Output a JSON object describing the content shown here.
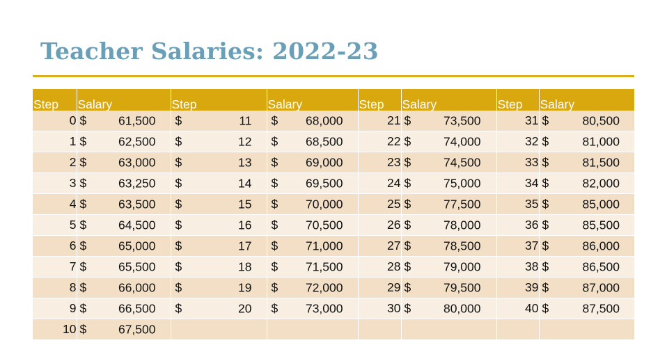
{
  "title": "Teacher Salaries: 2022-23",
  "headers": [
    "Step",
    "Salary",
    "Step",
    "Salary",
    "Step",
    "Salary",
    "Step",
    "Salary"
  ],
  "currency": "$",
  "rows": [
    {
      "s1": "0",
      "v1": "61,500",
      "s2": "11",
      "v2": "68,000",
      "s3": "21",
      "v3": "73,500",
      "s4": "31",
      "v4": "80,500"
    },
    {
      "s1": "1",
      "v1": "62,500",
      "s2": "12",
      "v2": "68,500",
      "s3": "22",
      "v3": "74,000",
      "s4": "32",
      "v4": "81,000"
    },
    {
      "s1": "2",
      "v1": "63,000",
      "s2": "13",
      "v2": "69,000",
      "s3": "23",
      "v3": "74,500",
      "s4": "33",
      "v4": "81,500"
    },
    {
      "s1": "3",
      "v1": "63,250",
      "s2": "14",
      "v2": "69,500",
      "s3": "24",
      "v3": "75,000",
      "s4": "34",
      "v4": "82,000"
    },
    {
      "s1": "4",
      "v1": "63,500",
      "s2": "15",
      "v2": "70,000",
      "s3": "25",
      "v3": "77,500",
      "s4": "35",
      "v4": "85,000"
    },
    {
      "s1": "5",
      "v1": "64,500",
      "s2": "16",
      "v2": "70,500",
      "s3": "26",
      "v3": "78,000",
      "s4": "36",
      "v4": "85,500"
    },
    {
      "s1": "6",
      "v1": "65,000",
      "s2": "17",
      "v2": "71,000",
      "s3": "27",
      "v3": "78,500",
      "s4": "37",
      "v4": "86,000"
    },
    {
      "s1": "7",
      "v1": "65,500",
      "s2": "18",
      "v2": "71,500",
      "s3": "28",
      "v3": "79,000",
      "s4": "38",
      "v4": "86,500"
    },
    {
      "s1": "8",
      "v1": "66,000",
      "s2": "19",
      "v2": "72,000",
      "s3": "29",
      "v3": "79,500",
      "s4": "39",
      "v4": "87,000"
    },
    {
      "s1": "9",
      "v1": "66,500",
      "s2": "20",
      "v2": "73,000",
      "s3": "30",
      "v3": "80,000",
      "s4": "40",
      "v4": "87,500"
    },
    {
      "s1": "10",
      "v1": "67,500",
      "s2": "",
      "v2": "",
      "s3": "",
      "v3": "",
      "s4": "",
      "v4": ""
    }
  ]
}
